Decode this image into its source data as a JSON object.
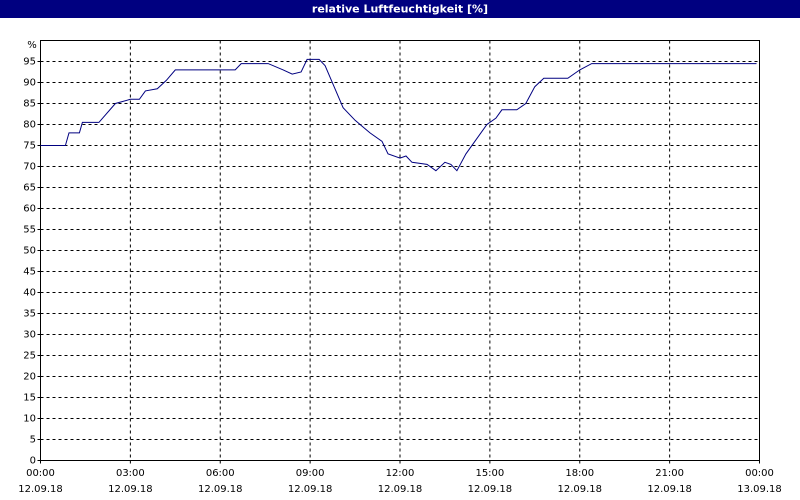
{
  "chart_data": {
    "type": "line",
    "title": "relative Luftfeuchtigkeit [%]",
    "y_label": "%",
    "x": [
      0,
      0.83,
      0.95,
      1.3,
      1.4,
      1.95,
      2.5,
      3,
      3.3,
      3.5,
      3.9,
      4.2,
      4.5,
      6.5,
      6.7,
      7.6,
      8.1,
      8.4,
      8.7,
      8.9,
      9.3,
      9.5,
      9.8,
      10.1,
      10.5,
      11,
      11.4,
      11.6,
      12,
      12.2,
      12.4,
      12.9,
      13.2,
      13.5,
      13.7,
      13.9,
      14.2,
      14.5,
      14.9,
      15.2,
      15.4,
      15.9,
      16.2,
      16.5,
      16.8,
      17.6,
      18,
      18.4,
      23.9
    ],
    "values": [
      75,
      75,
      78,
      78,
      80.5,
      80.5,
      85,
      86,
      86,
      88,
      88.5,
      90.5,
      93,
      93,
      94.5,
      94.5,
      93,
      92,
      92.5,
      95.5,
      95.5,
      94,
      89,
      84,
      81,
      78,
      76,
      73,
      72,
      72.5,
      71,
      70.5,
      69,
      71,
      70.5,
      69,
      73,
      76,
      80,
      81.5,
      83.5,
      83.5,
      85,
      89,
      91,
      91,
      93,
      94.5,
      94.5
    ],
    "color": "#000080",
    "xlim": [
      0,
      24
    ],
    "xticks": [
      {
        "value": 0,
        "label": [
          "00:00",
          "12.09.18"
        ]
      },
      {
        "value": 3,
        "label": [
          "03:00",
          "12.09.18"
        ]
      },
      {
        "value": 6,
        "label": [
          "06:00",
          "12.09.18"
        ]
      },
      {
        "value": 9,
        "label": [
          "09:00",
          "12.09.18"
        ]
      },
      {
        "value": 12,
        "label": [
          "12:00",
          "12.09.18"
        ]
      },
      {
        "value": 15,
        "label": [
          "15:00",
          "12.09.18"
        ]
      },
      {
        "value": 18,
        "label": [
          "18:00",
          "12.09.18"
        ]
      },
      {
        "value": 21,
        "label": [
          "21:00",
          "12.09.18"
        ]
      },
      {
        "value": 24,
        "label": [
          "00:00",
          "13.09.18"
        ]
      }
    ],
    "ylim": [
      0,
      100
    ],
    "yticks": [
      0,
      5,
      10,
      15,
      20,
      25,
      30,
      35,
      40,
      45,
      50,
      55,
      60,
      65,
      70,
      75,
      80,
      85,
      90,
      95
    ],
    "grid": true
  }
}
